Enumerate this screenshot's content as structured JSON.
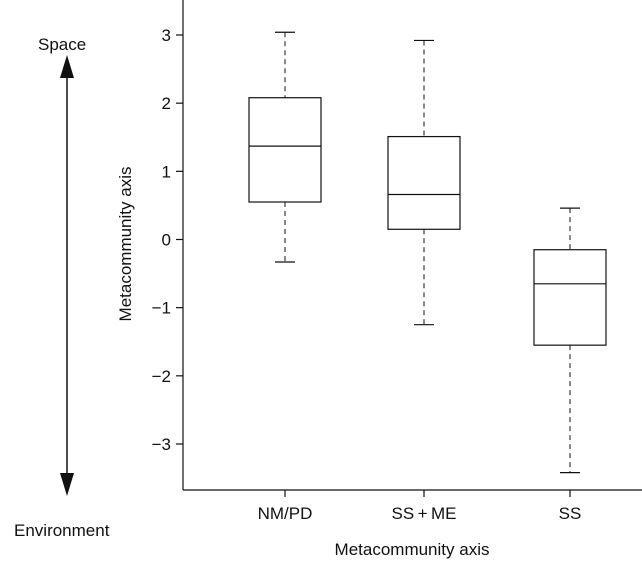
{
  "chart_data": {
    "type": "box",
    "title": "",
    "xlabel": "Metacommunity axis",
    "ylabel": "Metacommunity axis",
    "ylim": [
      -3.75,
      3.4
    ],
    "yticks": [
      3,
      2,
      1,
      0,
      -1,
      -2,
      -3
    ],
    "ytick_labels": [
      "3",
      "2",
      "1",
      "0",
      "−1",
      "−2",
      "−3"
    ],
    "grid": false,
    "categories": [
      "NM/PD",
      "SS + ME",
      "SS"
    ],
    "boxes": [
      {
        "category": "NM/PD",
        "whisker_low": -0.33,
        "q1": 0.55,
        "median": 1.37,
        "q3": 2.08,
        "whisker_high": 3.04
      },
      {
        "category": "SS + ME",
        "whisker_low": -1.25,
        "q1": 0.15,
        "median": 0.66,
        "q3": 1.51,
        "whisker_high": 2.92
      },
      {
        "category": "SS",
        "whisker_low": -3.42,
        "q1": -1.55,
        "median": -0.65,
        "q3": -0.15,
        "whisker_high": 0.46
      }
    ],
    "annotations": {
      "top_label": "Space",
      "bottom_label": "Environment",
      "arrow": "double-headed vertical"
    }
  }
}
